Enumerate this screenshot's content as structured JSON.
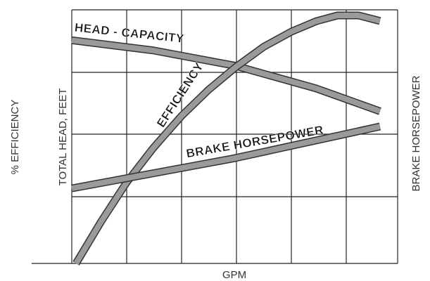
{
  "chart_data": {
    "type": "line",
    "x_label": "GPM",
    "y_label": "TOTAL HEAD, FEET",
    "y_label_outer": "% EFFICIENCY",
    "y2_label": "BRAKE HORSEPOWER",
    "xlim": [
      0,
      100
    ],
    "ylim": [
      0,
      100
    ],
    "series": [
      {
        "name": "HEAD - CAPACITY",
        "color": "#9a9a9a",
        "x": [
          0,
          25,
          50,
          75,
          94.6
        ],
        "values": [
          88,
          84,
          78,
          69,
          60
        ]
      },
      {
        "name": "EFFICIENCY",
        "color": "#9a9a9a",
        "x": [
          1.3,
          9,
          16.8,
          25,
          33.7,
          42,
          50.5,
          59,
          67.4,
          75,
          81.6,
          88,
          94.6
        ],
        "values": [
          0,
          16.5,
          31.9,
          45.5,
          58.2,
          68.5,
          77.6,
          85.5,
          91.4,
          95.5,
          97.8,
          97.8,
          95.6
        ]
      },
      {
        "name": "BRAKE HORSEPOWER",
        "color": "#9a9a9a",
        "x": [
          0,
          50,
          94.6
        ],
        "values": [
          29.6,
          41.5,
          54
        ]
      }
    ]
  }
}
